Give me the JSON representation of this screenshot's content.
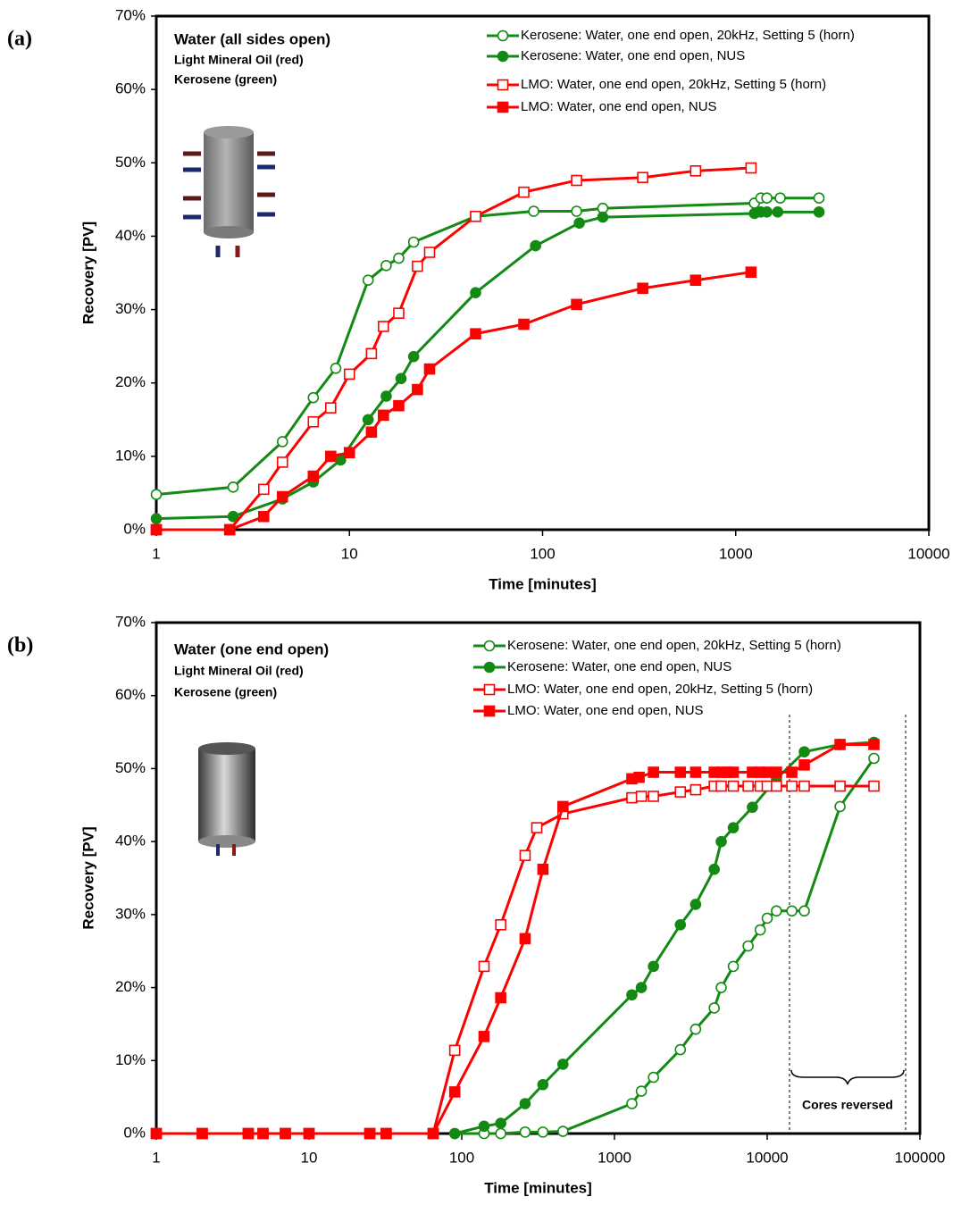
{
  "chart_data": [
    {
      "type": "line",
      "panel_label": "(a)",
      "xlabel": "Time [minutes]",
      "ylabel": "Recovery [PV]",
      "xscale": "log",
      "xlim": [
        1,
        10000
      ],
      "xticks": [
        1,
        10,
        100,
        1000,
        10000
      ],
      "ylim": [
        0,
        70
      ],
      "yticks": [
        {
          "value": 0,
          "label": "0%"
        },
        {
          "value": 10,
          "label": "10%"
        },
        {
          "value": 20,
          "label": "20%"
        },
        {
          "value": 30,
          "label": "30%"
        },
        {
          "value": 40,
          "label": "40%"
        },
        {
          "value": 50,
          "label": "50%"
        },
        {
          "value": 60,
          "label": "60%"
        },
        {
          "value": 70,
          "label": "70%"
        }
      ],
      "annotations": [
        "Water (all sides open)",
        "Light Mineral Oil (red)",
        "Kerosene (green)"
      ],
      "series": [
        {
          "name": "Kerosene: Water, one end open, 20kHz, Setting 5 (horn)",
          "color": "#138a13",
          "marker": "open-circle",
          "x": [
            1,
            2.5,
            4.5,
            6.5,
            8.5,
            12.5,
            15.5,
            18,
            21.5,
            45,
            90,
            150,
            205,
            1250,
            1350,
            1450,
            1700,
            2700
          ],
          "values": [
            4.8,
            5.8,
            12,
            18,
            22,
            34,
            36,
            37,
            39.2,
            42.7,
            43.4,
            43.4,
            43.8,
            44.5,
            45.2,
            45.2,
            45.2,
            45.2
          ]
        },
        {
          "name": "Kerosene: Water, one end open, NUS",
          "color": "#138a13",
          "marker": "filled-circle",
          "x": [
            1,
            2.5,
            4.5,
            6.5,
            9,
            12.5,
            15.5,
            18.5,
            21.5,
            45,
            92,
            155,
            205,
            1250,
            1350,
            1450,
            1650,
            2700
          ],
          "values": [
            1.5,
            1.8,
            4.2,
            6.5,
            9.5,
            15,
            18.2,
            20.6,
            23.6,
            32.3,
            38.7,
            41.8,
            42.6,
            43.1,
            43.3,
            43.3,
            43.3,
            43.3
          ]
        },
        {
          "name": "LMO: Water, one end open, 20kHz, Setting 5 (horn)",
          "color": "#ff0000",
          "marker": "open-square",
          "x": [
            1,
            2.4,
            3.6,
            4.5,
            6.5,
            8,
            10,
            13,
            15,
            18,
            22.5,
            26,
            45,
            80,
            150,
            330,
            620,
            1200
          ],
          "values": [
            0,
            0,
            5.5,
            9.2,
            14.7,
            16.6,
            21.2,
            24,
            27.7,
            29.5,
            35.9,
            37.8,
            42.7,
            46,
            47.6,
            48,
            48.9,
            49.3
          ]
        },
        {
          "name": "LMO: Water, one end open, NUS",
          "color": "#ff0000",
          "marker": "filled-square",
          "x": [
            1,
            2.4,
            3.6,
            4.5,
            6.5,
            8,
            10,
            13,
            15,
            18,
            22.5,
            26,
            45,
            80,
            150,
            330,
            620,
            1200
          ],
          "values": [
            0,
            0,
            1.8,
            4.5,
            7.3,
            10,
            10.5,
            13.3,
            15.6,
            16.9,
            19.1,
            21.9,
            26.7,
            28,
            30.7,
            32.9,
            34,
            35.1
          ]
        }
      ]
    },
    {
      "type": "line",
      "panel_label": "(b)",
      "xlabel": "Time [minutes]",
      "ylabel": "Recovery [PV]",
      "xscale": "log",
      "xlim": [
        1,
        100000
      ],
      "xticks": [
        1,
        10,
        100,
        1000,
        10000,
        100000
      ],
      "ylim": [
        0,
        70
      ],
      "yticks": [
        {
          "value": 0,
          "label": "0%"
        },
        {
          "value": 10,
          "label": "10%"
        },
        {
          "value": 20,
          "label": "20%"
        },
        {
          "value": 30,
          "label": "30%"
        },
        {
          "value": 40,
          "label": "40%"
        },
        {
          "value": 50,
          "label": "50%"
        },
        {
          "value": 60,
          "label": "60%"
        },
        {
          "value": 70,
          "label": "70%"
        }
      ],
      "annotations": [
        "Water (one end open)",
        "Light Mineral Oil (red)",
        "Kerosene (green)"
      ],
      "bracket_label": "Cores reversed",
      "series": [
        {
          "name": "Kerosene: Water, one end open, 20kHz, Setting 5 (horn)",
          "color": "#138a13",
          "marker": "open-circle",
          "x": [
            90,
            140,
            180,
            260,
            340,
            460,
            1300,
            1500,
            1800,
            2700,
            3400,
            4500,
            5000,
            6000,
            7500,
            9000,
            10000,
            11500,
            14500,
            17500,
            30000,
            50000
          ],
          "values": [
            0,
            0,
            0,
            0.2,
            0.2,
            0.3,
            4.1,
            5.8,
            7.7,
            11.5,
            14.3,
            17.2,
            20,
            22.9,
            25.7,
            27.9,
            29.5,
            30.5,
            30.5,
            30.5,
            44.8,
            51.4
          ]
        },
        {
          "name": "Kerosene: Water, one end open, NUS",
          "color": "#138a13",
          "marker": "filled-circle",
          "x": [
            90,
            140,
            180,
            260,
            340,
            460,
            1300,
            1500,
            1800,
            2700,
            3400,
            4500,
            5000,
            6000,
            8000,
            11500,
            17500,
            30000,
            50000
          ],
          "values": [
            0,
            1,
            1.4,
            4.1,
            6.7,
            9.5,
            19,
            20,
            22.9,
            28.6,
            31.4,
            36.2,
            40,
            41.9,
            44.7,
            48.6,
            52.3,
            53.3,
            53.6
          ]
        },
        {
          "name": "LMO: Water, one end open, 20kHz, Setting 5 (horn)",
          "color": "#ff0000",
          "marker": "open-square",
          "x": [
            1,
            2,
            4,
            5,
            7,
            10,
            25,
            32,
            65,
            90,
            140,
            180,
            260,
            310,
            460,
            1300,
            1500,
            1800,
            2700,
            3400,
            4500,
            5000,
            6000,
            7500,
            9000,
            10000,
            11500,
            14500,
            17500,
            30000,
            50000
          ],
          "values": [
            0,
            0,
            0,
            0,
            0,
            0,
            0,
            0,
            0,
            11.4,
            22.9,
            28.6,
            38.1,
            41.9,
            43.8,
            46,
            46.2,
            46.2,
            46.8,
            47.1,
            47.6,
            47.6,
            47.6,
            47.6,
            47.6,
            47.6,
            47.6,
            47.6,
            47.6,
            47.6,
            47.6
          ]
        },
        {
          "name": "LMO: Water, one end open, NUS",
          "color": "#ff0000",
          "marker": "filled-square",
          "x": [
            1,
            2,
            4,
            5,
            7,
            10,
            25,
            32,
            65,
            90,
            140,
            180,
            260,
            340,
            460,
            1300,
            1450,
            1800,
            2700,
            3400,
            4500,
            5000,
            5500,
            6000,
            8000,
            9000,
            10000,
            11500,
            14500,
            17500,
            30000,
            50000
          ],
          "values": [
            0,
            0,
            0,
            0,
            0,
            0,
            0,
            0,
            0,
            5.7,
            13.3,
            18.6,
            26.7,
            36.2,
            44.8,
            48.6,
            48.8,
            49.5,
            49.5,
            49.5,
            49.5,
            49.5,
            49.5,
            49.5,
            49.5,
            49.5,
            49.5,
            49.5,
            49.5,
            50.5,
            53.3,
            53.3
          ]
        }
      ]
    }
  ]
}
